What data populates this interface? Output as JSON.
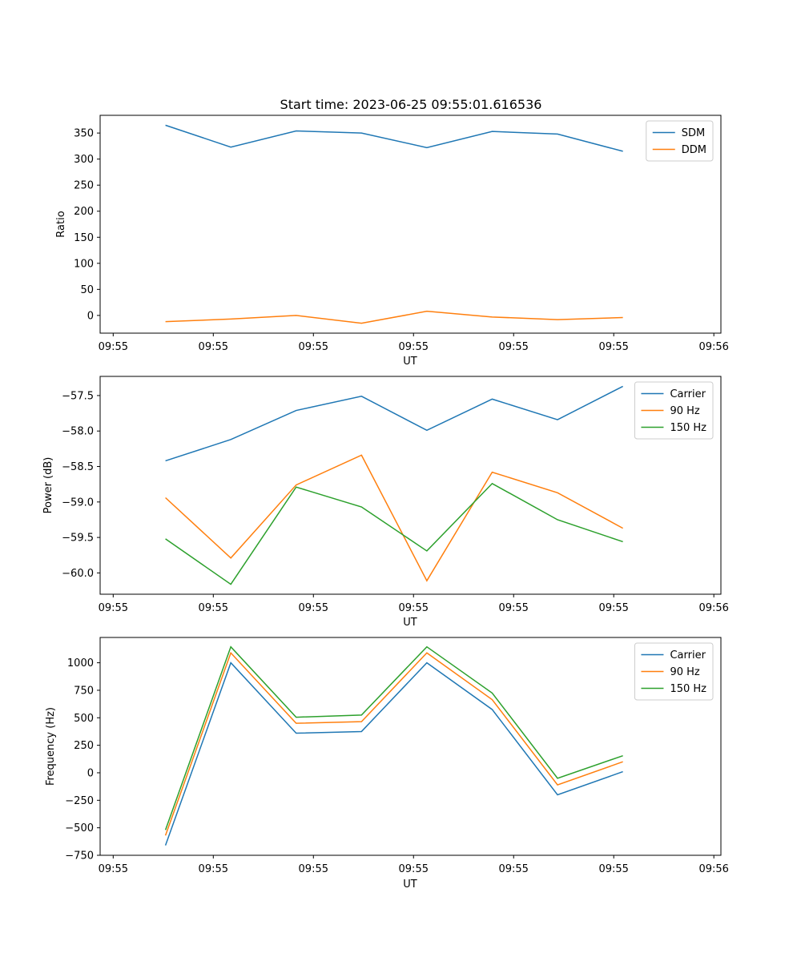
{
  "colors": {
    "blue": "#1f77b4",
    "orange": "#ff7f0e",
    "green": "#2ca02c"
  },
  "chart_data": [
    {
      "type": "line",
      "title": "Start time: 2023-06-25 09:55:01.616536",
      "xlabel": "UT",
      "ylabel": "Ratio",
      "xlim": [
        0,
        9.5
      ],
      "ylim": [
        -34,
        384
      ],
      "x": [
        1,
        2,
        3,
        4,
        5,
        6,
        7,
        8
      ],
      "x_ticks": [
        0.2,
        1.732,
        3.264,
        4.796,
        6.328,
        7.86,
        9.392
      ],
      "x_tick_labels": [
        "09:55",
        "09:55",
        "09:55",
        "09:55",
        "09:55",
        "09:55",
        "09:56"
      ],
      "y_ticks": [
        0,
        50,
        100,
        150,
        200,
        250,
        300,
        350
      ],
      "y_tick_labels": [
        "0",
        "50",
        "100",
        "150",
        "200",
        "250",
        "300",
        "350"
      ],
      "legend": "top-right",
      "series": [
        {
          "name": "SDM",
          "color": "#1f77b4",
          "values": [
            365,
            323,
            354,
            350,
            322,
            353,
            348,
            315
          ]
        },
        {
          "name": "DDM",
          "color": "#ff7f0e",
          "values": [
            -12,
            -7,
            0,
            -15,
            8,
            -3,
            -8,
            -4
          ]
        }
      ]
    },
    {
      "type": "line",
      "xlabel": "UT",
      "ylabel": "Power (dB)",
      "xlim": [
        0,
        9.5
      ],
      "ylim": [
        -60.3,
        -57.23
      ],
      "x": [
        1,
        2,
        3,
        4,
        5,
        6,
        7,
        8
      ],
      "x_ticks": [
        0.2,
        1.732,
        3.264,
        4.796,
        6.328,
        7.86,
        9.392
      ],
      "x_tick_labels": [
        "09:55",
        "09:55",
        "09:55",
        "09:55",
        "09:55",
        "09:55",
        "09:56"
      ],
      "y_ticks": [
        -60.0,
        -59.5,
        -59.0,
        -58.5,
        -58.0,
        -57.5
      ],
      "y_tick_labels": [
        "−60.0",
        "−59.5",
        "−59.0",
        "−58.5",
        "−58.0",
        "−57.5"
      ],
      "legend": "top-right",
      "series": [
        {
          "name": "Carrier",
          "color": "#1f77b4",
          "values": [
            -58.42,
            -58.12,
            -57.71,
            -57.51,
            -57.99,
            -57.55,
            -57.84,
            -57.37
          ]
        },
        {
          "name": "90 Hz",
          "color": "#ff7f0e",
          "values": [
            -58.94,
            -59.79,
            -58.76,
            -58.34,
            -60.11,
            -58.58,
            -58.87,
            -59.37
          ]
        },
        {
          "name": "150 Hz",
          "color": "#2ca02c",
          "values": [
            -59.52,
            -60.16,
            -58.79,
            -59.07,
            -59.69,
            -58.74,
            -59.25,
            -59.56
          ]
        }
      ]
    },
    {
      "type": "line",
      "xlabel": "UT",
      "ylabel": "Frequency (Hz)",
      "xlim": [
        0,
        9.5
      ],
      "ylim": [
        -750,
        1230
      ],
      "x": [
        1,
        2,
        3,
        4,
        5,
        6,
        7,
        8
      ],
      "x_ticks": [
        0.2,
        1.732,
        3.264,
        4.796,
        6.328,
        7.86,
        9.392
      ],
      "x_tick_labels": [
        "09:55",
        "09:55",
        "09:55",
        "09:55",
        "09:55",
        "09:55",
        "09:56"
      ],
      "y_ticks": [
        -750,
        -500,
        -250,
        0,
        250,
        500,
        750,
        1000
      ],
      "y_tick_labels": [
        "−750",
        "−500",
        "−250",
        "0",
        "250",
        "500",
        "750",
        "1000"
      ],
      "legend": "top-right",
      "series": [
        {
          "name": "Carrier",
          "color": "#1f77b4",
          "values": [
            -660,
            1000,
            360,
            375,
            1000,
            575,
            -200,
            10
          ]
        },
        {
          "name": "90 Hz",
          "color": "#ff7f0e",
          "values": [
            -570,
            1090,
            450,
            465,
            1090,
            665,
            -110,
            100
          ]
        },
        {
          "name": "150 Hz",
          "color": "#2ca02c",
          "values": [
            -520,
            1145,
            505,
            525,
            1145,
            725,
            -50,
            155
          ]
        }
      ]
    }
  ]
}
